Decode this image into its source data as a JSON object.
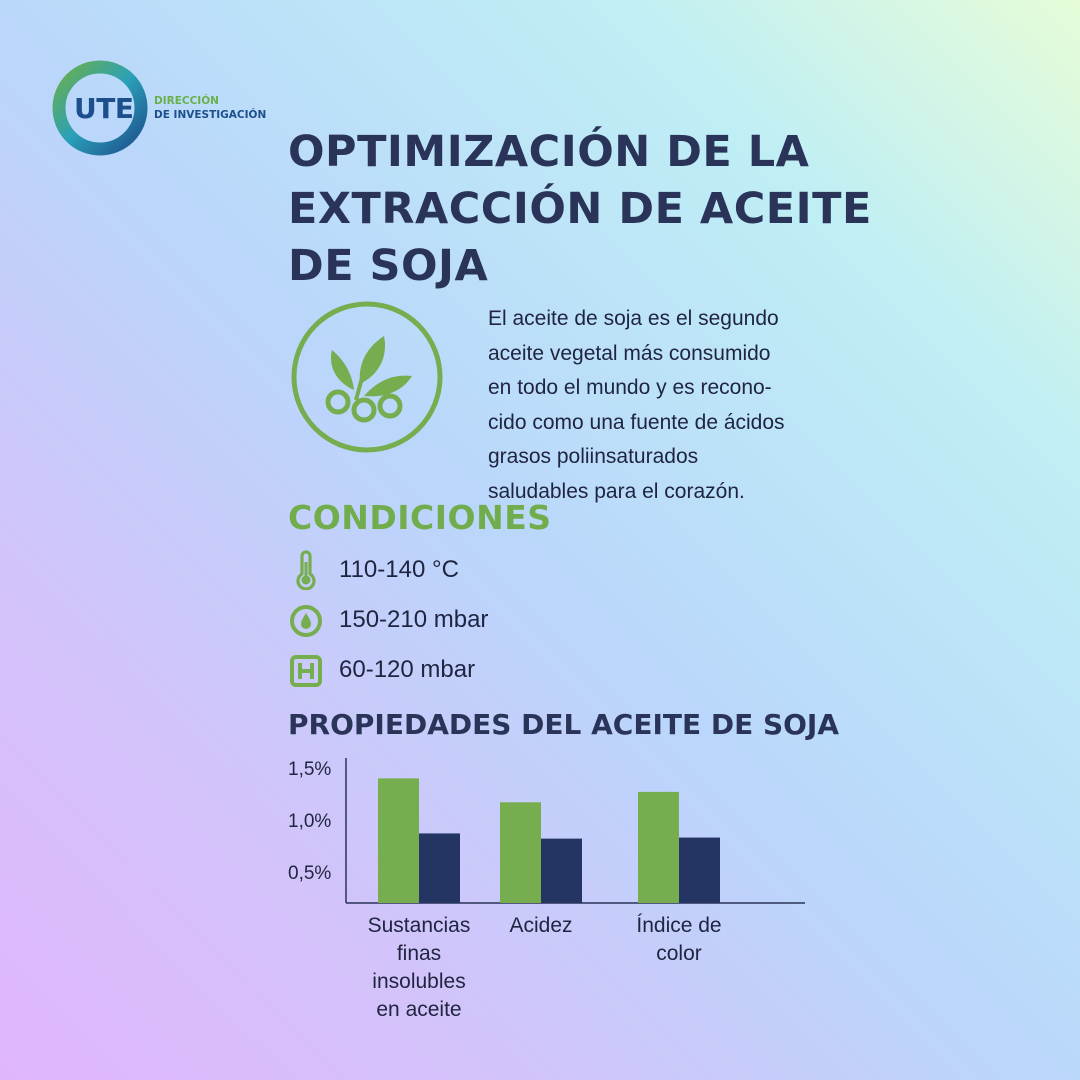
{
  "logo": {
    "brand": "UTE",
    "line1": "DIRECCIÓN",
    "line2": "DE INVESTIGACIÓN"
  },
  "title_lines": [
    "OPTIMIZACIÓN DE LA",
    "EXTRACCIÓN DE ACEITE",
    "DE SOJA"
  ],
  "intro_lines": [
    "El aceite de soja es el segundo",
    "aceite vegetal más consumido",
    "en todo el mundo y es recono-",
    "cido como una fuente de ácidos",
    "grasos poliinsaturados",
    "saludables para el corazón."
  ],
  "conditions": {
    "title": "CONDICIONES",
    "items": [
      {
        "icon": "thermometer-icon",
        "value": "110-140 °C"
      },
      {
        "icon": "pressure-drop-icon",
        "value": "150-210 mbar"
      },
      {
        "icon": "h-square-icon",
        "value": "60-120 mbar"
      }
    ]
  },
  "colors": {
    "green": "#76ad4f",
    "navy": "#243563",
    "title": "#2a3358"
  },
  "chart_data": {
    "type": "bar",
    "title": "PROPIEDADES DEL ACEITE DE SOJA",
    "categories": [
      [
        "Sustancias",
        "finas",
        "insolubles",
        "en aceite"
      ],
      [
        "Acidez"
      ],
      [
        "Índice de",
        "color"
      ]
    ],
    "series": [
      {
        "values": [
          1.4,
          1.17,
          1.27
        ]
      },
      {
        "values": [
          0.87,
          0.82,
          0.83
        ]
      }
    ],
    "yticks": [
      "1,5%",
      "1,0%",
      "0,5%"
    ],
    "ytick_values": [
      1.5,
      1.0,
      0.5
    ],
    "ylim": [
      0.2,
      1.5
    ],
    "legend": "none",
    "grid": false
  }
}
